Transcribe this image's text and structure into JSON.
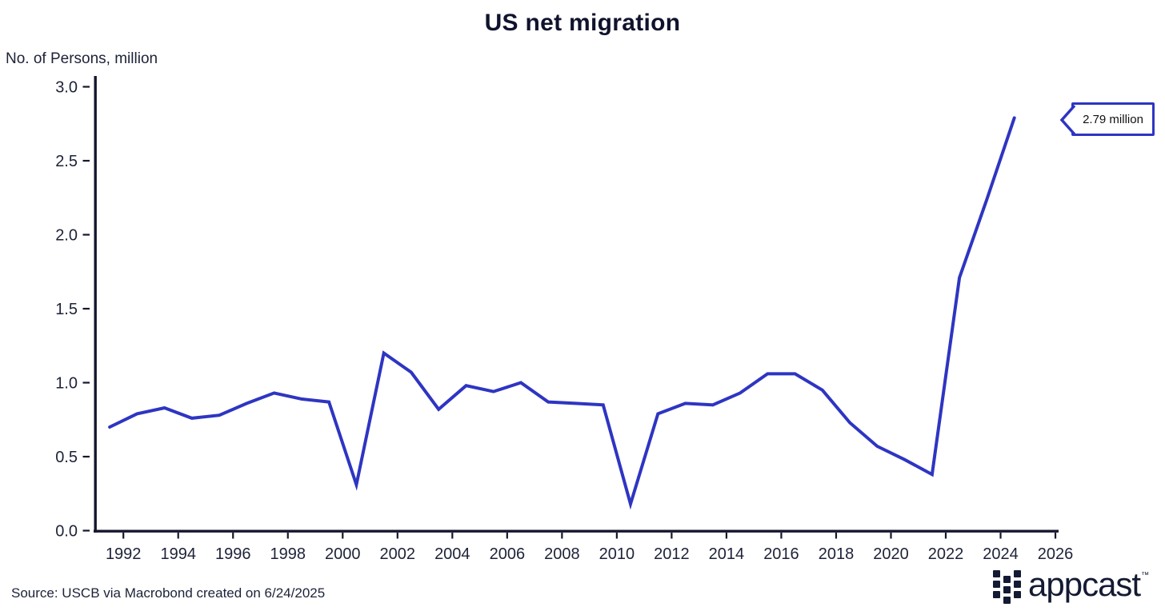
{
  "title": "US net migration",
  "y_axis_label": "No. of Persons, million",
  "annotation": {
    "label": "2.79 million"
  },
  "source": "Source: USCB via Macrobond created on 6/24/2025",
  "logo": {
    "wordmark": "appcast",
    "trademark": "™"
  },
  "colors": {
    "background": "#ffffff",
    "line": "#2e35c2",
    "axis": "#14172c",
    "tick_text": "#1d2238",
    "title_text": "#10132d",
    "annotation_border": "#2e35c2",
    "annotation_text": "#111111",
    "logo": "#131a33"
  },
  "chart_data": {
    "type": "line",
    "title": "US net migration",
    "xlabel": "",
    "ylabel": "No. of Persons, million",
    "series": [
      {
        "name": "US net migration",
        "years": [
          1991,
          1992,
          1993,
          1994,
          1995,
          1996,
          1997,
          1998,
          1999,
          2000,
          2001,
          2002,
          2003,
          2004,
          2005,
          2006,
          2007,
          2008,
          2009,
          2010,
          2011,
          2012,
          2013,
          2014,
          2015,
          2016,
          2017,
          2018,
          2019,
          2020,
          2021,
          2022,
          2023,
          2024
        ],
        "values": [
          0.7,
          0.79,
          0.83,
          0.76,
          0.78,
          0.86,
          0.93,
          0.89,
          0.87,
          0.31,
          1.2,
          1.07,
          0.82,
          0.98,
          0.94,
          1.0,
          0.87,
          0.86,
          0.85,
          0.18,
          0.79,
          0.86,
          0.85,
          0.93,
          1.06,
          1.06,
          0.95,
          0.73,
          0.57,
          0.48,
          0.38,
          1.71,
          2.24,
          2.79
        ]
      }
    ],
    "x_plot_offset": 0.5,
    "x_ticks": [
      1992,
      1994,
      1996,
      1998,
      2000,
      2002,
      2004,
      2006,
      2008,
      2010,
      2012,
      2014,
      2016,
      2018,
      2020,
      2022,
      2024,
      2026
    ],
    "y_ticks": [
      0.0,
      0.5,
      1.0,
      1.5,
      2.0,
      2.5,
      3.0
    ],
    "y_tick_labels": [
      "0.0",
      "0.5",
      "1.0",
      "1.5",
      "2.0",
      "2.5",
      "3.0"
    ],
    "xlim": [
      1991,
      2026.3
    ],
    "ylim": [
      0,
      3.0
    ],
    "grid": false,
    "legend": "none",
    "annotation_last_value": "2.79 million"
  }
}
